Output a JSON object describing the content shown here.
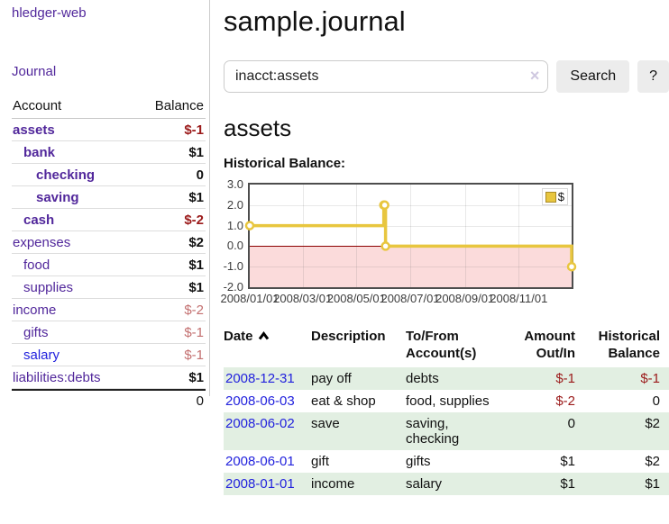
{
  "colors": {
    "purple_link": "#51279b",
    "blue_link": "#2222dd",
    "negative_strong": "#9b1a1a",
    "negative_soft": "#c36f6f",
    "row_green": "#e2efe2",
    "series_yellow": "#e8c63f"
  },
  "sidebar": {
    "brand": "hledger-web",
    "nav_journal": "Journal",
    "accounts_header": {
      "account": "Account",
      "balance": "Balance"
    },
    "accounts": [
      {
        "label": "assets",
        "indent": 1,
        "bold": true,
        "link_color": "purple",
        "balance": "$-1",
        "balance_style": "neg-strong"
      },
      {
        "label": "bank",
        "indent": 2,
        "bold": true,
        "link_color": "purple",
        "balance": "$1",
        "balance_style": "pos"
      },
      {
        "label": "checking",
        "indent": 3,
        "bold": true,
        "link_color": "purple",
        "balance": "0",
        "balance_style": "pos"
      },
      {
        "label": "saving",
        "indent": 3,
        "bold": true,
        "link_color": "purple",
        "balance": "$1",
        "balance_style": "pos"
      },
      {
        "label": "cash",
        "indent": 2,
        "bold": true,
        "link_color": "purple",
        "balance": "$-2",
        "balance_style": "neg-strong"
      },
      {
        "label": "expenses",
        "indent": 1,
        "bold": false,
        "link_color": "purple",
        "balance": "$2",
        "balance_style": "pos"
      },
      {
        "label": "food",
        "indent": 2,
        "bold": false,
        "link_color": "purple",
        "balance": "$1",
        "balance_style": "pos"
      },
      {
        "label": "supplies",
        "indent": 2,
        "bold": false,
        "link_color": "purple",
        "balance": "$1",
        "balance_style": "pos"
      },
      {
        "label": "income",
        "indent": 1,
        "bold": false,
        "link_color": "purple",
        "balance": "$-2",
        "balance_style": "neg-soft"
      },
      {
        "label": "gifts",
        "indent": 2,
        "bold": false,
        "link_color": "purple",
        "balance": "$-1",
        "balance_style": "neg-soft"
      },
      {
        "label": "salary",
        "indent": 2,
        "bold": false,
        "link_color": "blue",
        "balance": "$-1",
        "balance_style": "neg-soft"
      },
      {
        "label": "liabilities:debts",
        "indent": 1,
        "bold": false,
        "link_color": "purple",
        "balance": "$1",
        "balance_style": "pos"
      }
    ],
    "total": "0"
  },
  "header": {
    "title": "sample.journal"
  },
  "search": {
    "value": "inacct:assets",
    "clear_label": "×",
    "button_label": "Search",
    "help_label": "?"
  },
  "account_page": {
    "heading": "assets",
    "chart_label": "Historical Balance:"
  },
  "chart_data": {
    "type": "line",
    "step": true,
    "title": "Historical Balance",
    "legend": "$",
    "legend_position": "top-right",
    "grid": true,
    "xrange": [
      "2008-01-01",
      "2008-12-31"
    ],
    "ylim": [
      -2,
      3
    ],
    "series": [
      {
        "name": "$",
        "color": "#e8c63f",
        "points": [
          [
            "2008-01-01",
            1
          ],
          [
            "2008-06-01",
            2
          ],
          [
            "2008-06-02",
            2
          ],
          [
            "2008-06-03",
            0
          ],
          [
            "2008-12-31",
            -1
          ]
        ]
      }
    ],
    "yticks": [
      {
        "v": 3,
        "label": "3.0"
      },
      {
        "v": 2,
        "label": "2.0"
      },
      {
        "v": 1,
        "label": "1.0"
      },
      {
        "v": 0,
        "label": "0.0"
      },
      {
        "v": -1,
        "label": "-1.0"
      },
      {
        "v": -2,
        "label": "-2.0"
      }
    ],
    "xticks": [
      {
        "date": "2008-01-01",
        "label": "2008/01/01"
      },
      {
        "date": "2008-03-01",
        "label": "2008/03/01"
      },
      {
        "date": "2008-05-01",
        "label": "2008/05/01"
      },
      {
        "date": "2008-07-01",
        "label": "2008/07/01"
      },
      {
        "date": "2008-09-01",
        "label": "2008/09/01"
      },
      {
        "date": "2008-11-01",
        "label": "2008/11/01"
      }
    ],
    "negative_fill": "#fbdbdb",
    "zero_line_color": "#8b0000"
  },
  "transactions": {
    "columns": [
      "Date",
      "Description",
      "To/From Account(s)",
      "Amount Out/In",
      "Historical Balance"
    ],
    "sort": {
      "column": "Date",
      "direction": "asc"
    },
    "rows": [
      {
        "date": "2008-12-31",
        "description": "pay off",
        "accounts": "debts",
        "amount": "$-1",
        "amount_negative": true,
        "balance": "$-1",
        "balance_negative": true,
        "green": true
      },
      {
        "date": "2008-06-03",
        "description": "eat & shop",
        "accounts": "food, supplies",
        "amount": "$-2",
        "amount_negative": true,
        "balance": "0",
        "balance_negative": false,
        "green": false
      },
      {
        "date": "2008-06-02",
        "description": "save",
        "accounts": "saving, checking",
        "amount": "0",
        "amount_negative": false,
        "balance": "$2",
        "balance_negative": false,
        "green": true
      },
      {
        "date": "2008-06-01",
        "description": "gift",
        "accounts": "gifts",
        "amount": "$1",
        "amount_negative": false,
        "balance": "$2",
        "balance_negative": false,
        "green": false
      },
      {
        "date": "2008-01-01",
        "description": "income",
        "accounts": "salary",
        "amount": "$1",
        "amount_negative": false,
        "balance": "$1",
        "balance_negative": false,
        "green": true
      }
    ]
  }
}
